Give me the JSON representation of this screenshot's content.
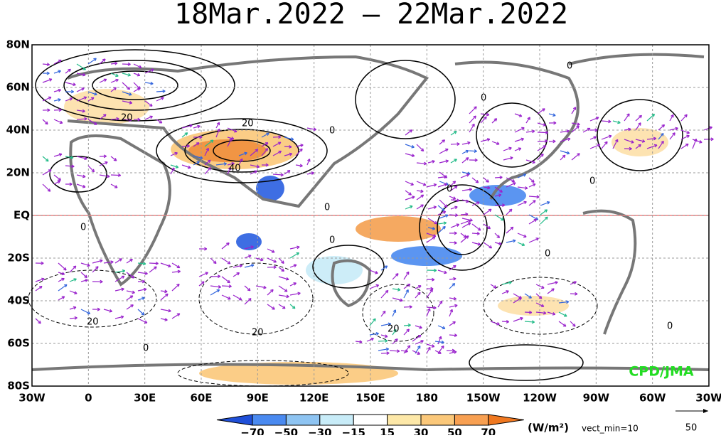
{
  "header": {
    "title": "18Mar.2022 – 22Mar.2022"
  },
  "map": {
    "lat_labels": [
      "80N",
      "60N",
      "40N",
      "20N",
      "EQ",
      "20S",
      "40S",
      "60S",
      "80S"
    ],
    "lon_labels": [
      "30W",
      "0",
      "30E",
      "60E",
      "90E",
      "120E",
      "150E",
      "180",
      "150W",
      "120W",
      "90W",
      "60W",
      "30W"
    ],
    "contour_labels": [
      "0",
      "0",
      "20",
      "20",
      "0",
      "40",
      "0",
      "0",
      "0",
      "0",
      "0",
      "0",
      "20",
      "20",
      "20",
      "0",
      "0"
    ],
    "credit": "CPD/JMA"
  },
  "colorbar": {
    "labels": [
      "−70",
      "−50",
      "−30",
      "−15",
      "15",
      "30",
      "50",
      "70"
    ],
    "units": "(W/m²)",
    "vector_note": "vect_min=10",
    "vector_scale": "50"
  }
}
